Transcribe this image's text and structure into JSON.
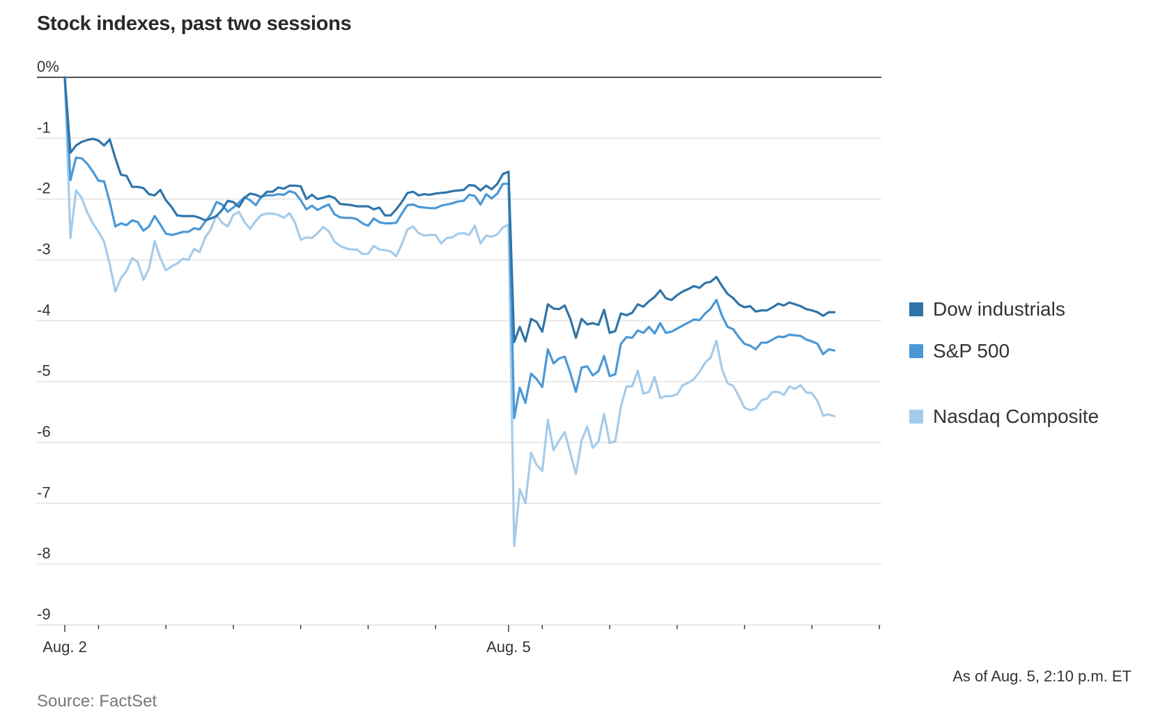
{
  "header": {
    "title": "Stock indexes, past two sessions"
  },
  "footer": {
    "source": "Source: FactSet",
    "as_of": "As of Aug. 5, 2:10 p.m. ET"
  },
  "chart_data": {
    "type": "line",
    "title": "Stock indexes, past two sessions",
    "xlabel": "",
    "ylabel": "",
    "ylim": [
      -9,
      0
    ],
    "yticks": [
      0,
      -1,
      -2,
      -3,
      -4,
      -5,
      -6,
      -7,
      -8,
      -9
    ],
    "ytick_labels": [
      "0%",
      "-1",
      "-2",
      "-3",
      "-4",
      "-5",
      "-6",
      "-7",
      "-8",
      "-9"
    ],
    "x_tick_labels": [
      {
        "label": "Aug. 2",
        "index": 0
      },
      {
        "label": "Aug. 5",
        "index": 79
      }
    ],
    "minor_ticks": [
      0,
      6,
      18,
      30,
      42,
      54,
      66,
      79,
      85,
      97,
      109,
      121,
      133,
      145
    ],
    "x_max_index": 145,
    "grid": true,
    "legend": "right",
    "series": [
      {
        "name": "Dow industrials",
        "color": "#2f74a8",
        "values": [
          0,
          -1.24,
          -1.12,
          -1.06,
          -1.03,
          -1.01,
          -1.04,
          -1.12,
          -1.02,
          -1.33,
          -1.6,
          -1.62,
          -1.8,
          -1.8,
          -1.82,
          -1.92,
          -1.94,
          -1.85,
          -2.02,
          -2.13,
          -2.27,
          -2.28,
          -2.28,
          -2.28,
          -2.31,
          -2.35,
          -2.32,
          -2.28,
          -2.18,
          -2.03,
          -2.05,
          -2.13,
          -1.98,
          -1.91,
          -1.93,
          -1.97,
          -1.88,
          -1.88,
          -1.81,
          -1.83,
          -1.78,
          -1.78,
          -1.79,
          -2,
          -1.93,
          -2,
          -1.98,
          -1.95,
          -1.98,
          -2.08,
          -2.09,
          -2.1,
          -2.12,
          -2.12,
          -2.12,
          -2.17,
          -2.14,
          -2.27,
          -2.27,
          -2.17,
          -2.05,
          -1.9,
          -1.88,
          -1.94,
          -1.92,
          -1.93,
          -1.91,
          -1.9,
          -1.89,
          -1.87,
          -1.86,
          -1.85,
          -1.77,
          -1.78,
          -1.86,
          -1.78,
          -1.84,
          -1.75,
          -1.59,
          -1.55,
          -4.35,
          -4.1,
          -4.34,
          -3.97,
          -4.02,
          -4.18,
          -3.73,
          -3.8,
          -3.81,
          -3.75,
          -3.97,
          -4.28,
          -3.97,
          -4.06,
          -4.04,
          -4.07,
          -3.82,
          -4.2,
          -4.17,
          -3.88,
          -3.91,
          -3.87,
          -3.73,
          -3.77,
          -3.68,
          -3.61,
          -3.5,
          -3.63,
          -3.66,
          -3.58,
          -3.52,
          -3.48,
          -3.43,
          -3.46,
          -3.38,
          -3.36,
          -3.28,
          -3.43,
          -3.56,
          -3.63,
          -3.73,
          -3.78,
          -3.76,
          -3.85,
          -3.83,
          -3.83,
          -3.78,
          -3.72,
          -3.75,
          -3.7,
          -3.73,
          -3.76,
          -3.81,
          -3.83,
          -3.86,
          -3.92,
          -3.86,
          -3.86
        ]
      },
      {
        "name": "S&P 500",
        "color": "#4a98d6",
        "values": [
          0,
          -1.69,
          -1.32,
          -1.33,
          -1.42,
          -1.55,
          -1.7,
          -1.71,
          -2.05,
          -2.45,
          -2.4,
          -2.43,
          -2.35,
          -2.38,
          -2.52,
          -2.45,
          -2.28,
          -2.42,
          -2.57,
          -2.59,
          -2.57,
          -2.54,
          -2.54,
          -2.48,
          -2.5,
          -2.37,
          -2.25,
          -2.05,
          -2.09,
          -2.21,
          -2.14,
          -2.06,
          -1.97,
          -2.02,
          -2.1,
          -1.96,
          -1.94,
          -1.94,
          -1.92,
          -1.93,
          -1.87,
          -1.9,
          -2.02,
          -2.17,
          -2.11,
          -2.18,
          -2.13,
          -2.09,
          -2.25,
          -2.3,
          -2.31,
          -2.31,
          -2.33,
          -2.4,
          -2.44,
          -2.32,
          -2.38,
          -2.4,
          -2.4,
          -2.39,
          -2.24,
          -2.1,
          -2.09,
          -2.13,
          -2.14,
          -2.15,
          -2.15,
          -2.11,
          -2.09,
          -2.07,
          -2.04,
          -2.03,
          -1.93,
          -1.95,
          -2.09,
          -1.92,
          -1.99,
          -1.91,
          -1.75,
          -1.75,
          -5.6,
          -5.1,
          -5.35,
          -4.87,
          -4.96,
          -5.09,
          -4.47,
          -4.7,
          -4.62,
          -4.59,
          -4.86,
          -5.17,
          -4.77,
          -4.75,
          -4.9,
          -4.83,
          -4.58,
          -4.91,
          -4.88,
          -4.38,
          -4.27,
          -4.28,
          -4.16,
          -4.2,
          -4.1,
          -4.21,
          -4.04,
          -4.2,
          -4.18,
          -4.13,
          -4.08,
          -4.03,
          -3.98,
          -3.99,
          -3.88,
          -3.8,
          -3.66,
          -3.92,
          -4.1,
          -4.14,
          -4.27,
          -4.38,
          -4.41,
          -4.47,
          -4.36,
          -4.36,
          -4.31,
          -4.26,
          -4.27,
          -4.23,
          -4.24,
          -4.25,
          -4.31,
          -4.34,
          -4.38,
          -4.55,
          -4.47,
          -4.49
        ]
      },
      {
        "name": "Nasdaq Composite",
        "color": "#a5cbea",
        "values": [
          0,
          -2.64,
          -1.86,
          -1.98,
          -2.22,
          -2.4,
          -2.54,
          -2.7,
          -3.07,
          -3.52,
          -3.3,
          -3.18,
          -2.97,
          -3.04,
          -3.33,
          -3.14,
          -2.69,
          -2.97,
          -3.17,
          -3.11,
          -3.06,
          -2.98,
          -3,
          -2.82,
          -2.87,
          -2.63,
          -2.5,
          -2.26,
          -2.39,
          -2.45,
          -2.26,
          -2.21,
          -2.38,
          -2.49,
          -2.36,
          -2.26,
          -2.24,
          -2.24,
          -2.26,
          -2.31,
          -2.23,
          -2.39,
          -2.67,
          -2.63,
          -2.64,
          -2.56,
          -2.46,
          -2.53,
          -2.7,
          -2.77,
          -2.81,
          -2.83,
          -2.83,
          -2.9,
          -2.9,
          -2.77,
          -2.83,
          -2.84,
          -2.86,
          -2.94,
          -2.74,
          -2.5,
          -2.45,
          -2.56,
          -2.6,
          -2.59,
          -2.59,
          -2.73,
          -2.64,
          -2.63,
          -2.57,
          -2.56,
          -2.59,
          -2.44,
          -2.73,
          -2.6,
          -2.62,
          -2.58,
          -2.47,
          -2.42,
          -7.7,
          -6.77,
          -7,
          -6.17,
          -6.37,
          -6.47,
          -5.63,
          -6.13,
          -5.97,
          -5.83,
          -6.18,
          -6.52,
          -5.97,
          -5.74,
          -6.09,
          -5.99,
          -5.53,
          -6.01,
          -5.98,
          -5.41,
          -5.08,
          -5.08,
          -4.82,
          -5.2,
          -5.17,
          -4.92,
          -5.27,
          -5.24,
          -5.24,
          -5.21,
          -5.06,
          -5.02,
          -4.96,
          -4.84,
          -4.69,
          -4.6,
          -4.33,
          -4.8,
          -5.03,
          -5.07,
          -5.24,
          -5.43,
          -5.47,
          -5.44,
          -5.31,
          -5.28,
          -5.17,
          -5.17,
          -5.22,
          -5.08,
          -5.12,
          -5.06,
          -5.18,
          -5.19,
          -5.32,
          -5.56,
          -5.54,
          -5.57
        ]
      }
    ]
  }
}
